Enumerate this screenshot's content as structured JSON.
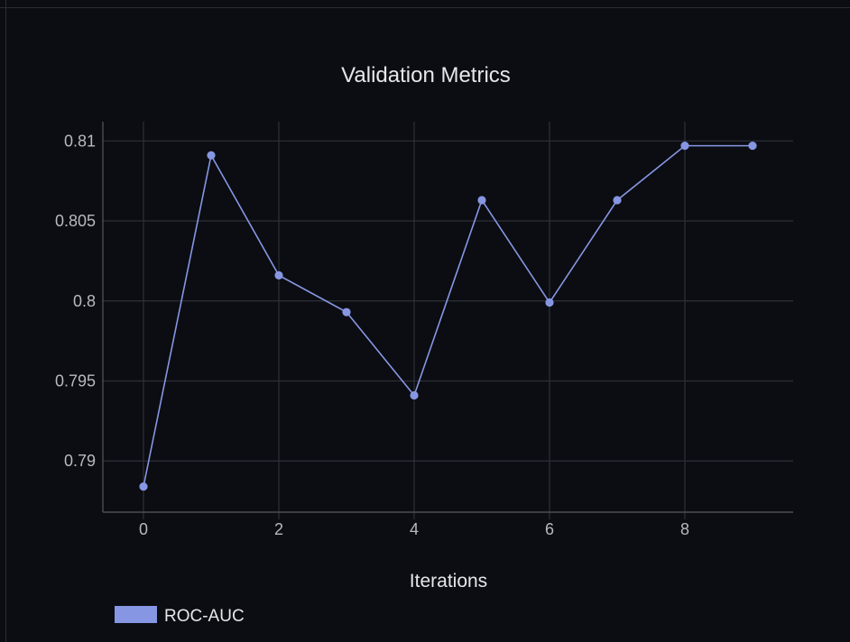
{
  "chart_data": {
    "type": "line",
    "title": "Validation Metrics",
    "xlabel": "Iterations",
    "ylabel": "",
    "x": [
      0,
      1,
      2,
      3,
      4,
      5,
      6,
      7,
      8,
      9
    ],
    "series": [
      {
        "name": "ROC-AUC",
        "values": [
          0.7884,
          0.8091,
          0.8016,
          0.7993,
          0.7941,
          0.8063,
          0.7999,
          0.8063,
          0.8097,
          0.8097
        ],
        "color": "#8796e3"
      }
    ],
    "xticks": [
      "0",
      "2",
      "4",
      "6",
      "8"
    ],
    "yticks": [
      "0.79",
      "0.795",
      "0.8",
      "0.805",
      "0.81"
    ],
    "xlim": [
      -0.6,
      9.6
    ],
    "ylim": [
      0.7868,
      0.8112
    ],
    "grid": true,
    "legend": "bottom-left",
    "colors": {
      "background": "#0b0d12",
      "grid": "#2d3039",
      "line": "#8796e3",
      "text": "#e6e7ea"
    }
  }
}
